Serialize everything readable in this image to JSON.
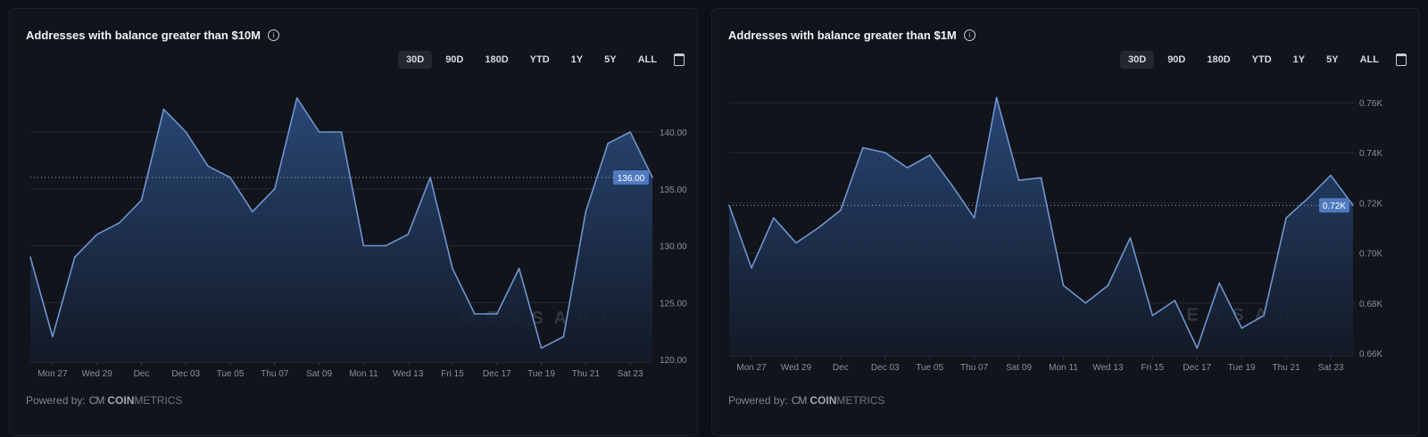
{
  "ranges": [
    "30D",
    "90D",
    "180D",
    "YTD",
    "1Y",
    "5Y",
    "ALL"
  ],
  "active_range": "30D",
  "powered_by": {
    "label": "Powered by:",
    "logo_mark": "CM",
    "brand_bold": "COIN",
    "brand_light": "METRICS"
  },
  "watermark": "MESSARI",
  "colors": {
    "line": "#6f95d0",
    "fill_top": "#2a4a7a",
    "badge": "#4f7ac0",
    "grid": "#252a34",
    "background": "#11141b"
  },
  "icons": {
    "info": "info-circle-icon",
    "calendar": "calendar-icon"
  },
  "chart_data": [
    {
      "type": "area",
      "title": "Addresses with balance greater than $10M",
      "x": [
        "Nov 26",
        "Nov 27",
        "Nov 28",
        "Nov 29",
        "Nov 30",
        "Dec 01",
        "Dec 02",
        "Dec 03",
        "Dec 04",
        "Dec 05",
        "Dec 06",
        "Dec 07",
        "Dec 08",
        "Dec 09",
        "Dec 10",
        "Dec 11",
        "Dec 12",
        "Dec 13",
        "Dec 14",
        "Dec 15",
        "Dec 16",
        "Dec 17",
        "Dec 18",
        "Dec 19",
        "Dec 20",
        "Dec 21",
        "Dec 22",
        "Dec 23",
        "Dec 24"
      ],
      "values": [
        129,
        122,
        129,
        131,
        132,
        134,
        142,
        140,
        137,
        136,
        133,
        135,
        143,
        140,
        140,
        130,
        130,
        131,
        136,
        128,
        124,
        124,
        128,
        121,
        122,
        133,
        139,
        140,
        136
      ],
      "x_tick_labels": [
        "Mon 27",
        "Wed 29",
        "Dec",
        "Dec 03",
        "Tue 05",
        "Thu 07",
        "Sat 09",
        "Mon 11",
        "Wed 13",
        "Fri 15",
        "Dec 17",
        "Tue 19",
        "Thu 21",
        "Sat 23"
      ],
      "y_ticks": [
        120,
        125,
        130,
        135,
        140
      ],
      "y_tick_labels": [
        "120.00",
        "125.00",
        "130.00",
        "135.00",
        "140.00"
      ],
      "ylim": [
        120,
        144
      ],
      "last_value_label": "136.00",
      "grid": true
    },
    {
      "type": "area",
      "title": "Addresses with balance greater than $1M",
      "x": [
        "Nov 26",
        "Nov 27",
        "Nov 28",
        "Nov 29",
        "Nov 30",
        "Dec 01",
        "Dec 02",
        "Dec 03",
        "Dec 04",
        "Dec 05",
        "Dec 06",
        "Dec 07",
        "Dec 08",
        "Dec 09",
        "Dec 10",
        "Dec 11",
        "Dec 12",
        "Dec 13",
        "Dec 14",
        "Dec 15",
        "Dec 16",
        "Dec 17",
        "Dec 18",
        "Dec 19",
        "Dec 20",
        "Dec 21",
        "Dec 22",
        "Dec 23",
        "Dec 24"
      ],
      "values": [
        0.719,
        0.694,
        0.714,
        0.704,
        0.71,
        0.717,
        0.742,
        0.74,
        0.734,
        0.739,
        0.727,
        0.714,
        0.762,
        0.729,
        0.73,
        0.687,
        0.68,
        0.687,
        0.706,
        0.675,
        0.681,
        0.662,
        0.688,
        0.67,
        0.675,
        0.714,
        0.722,
        0.731,
        0.719
      ],
      "x_tick_labels": [
        "Mon 27",
        "Wed 29",
        "Dec",
        "Dec 03",
        "Tue 05",
        "Thu 07",
        "Sat 09",
        "Mon 11",
        "Wed 13",
        "Fri 15",
        "Dec 17",
        "Tue 19",
        "Thu 21",
        "Sat 23"
      ],
      "y_ticks": [
        0.66,
        0.68,
        0.7,
        0.72,
        0.74,
        0.76
      ],
      "y_tick_labels": [
        "0.66K",
        "0.68K",
        "0.70K",
        "0.72K",
        "0.74K",
        "0.76K"
      ],
      "ylim": [
        0.66,
        0.76
      ],
      "last_value_label": "0.72K",
      "grid": true
    }
  ]
}
